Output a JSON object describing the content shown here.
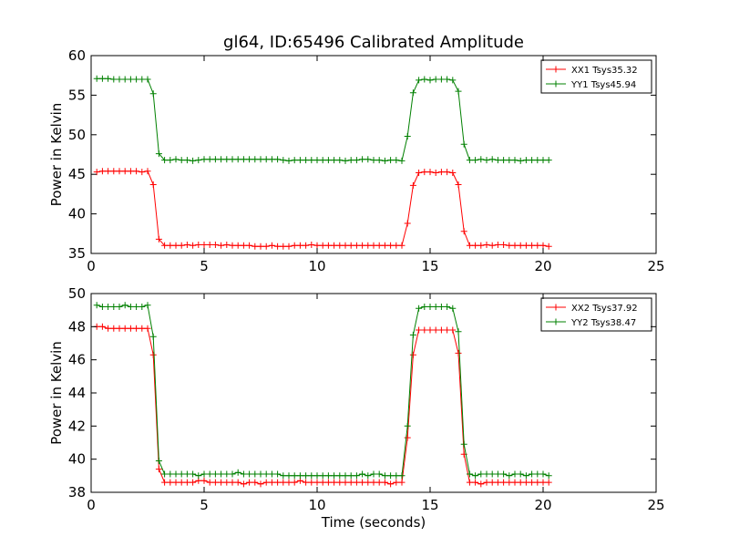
{
  "figure": {
    "title": "gl64, ID:65496 Calibrated Amplitude"
  },
  "chart_data": [
    {
      "type": "line",
      "title": "gl64, ID:65496 Calibrated Amplitude",
      "xlabel": "",
      "ylabel": "Power in Kelvin",
      "xlim": [
        0,
        25
      ],
      "ylim": [
        35,
        60
      ],
      "xticks": [
        0,
        5,
        10,
        15,
        20,
        25
      ],
      "yticks": [
        35,
        40,
        45,
        50,
        55,
        60
      ],
      "legend_position": "top-right",
      "grid": false,
      "x": [
        0.25,
        0.5,
        0.75,
        1.0,
        1.25,
        1.5,
        1.75,
        2.0,
        2.25,
        2.5,
        2.75,
        3.0,
        3.25,
        3.5,
        3.75,
        4.0,
        4.25,
        4.5,
        4.75,
        5.0,
        5.25,
        5.5,
        5.75,
        6.0,
        6.25,
        6.5,
        6.75,
        7.0,
        7.25,
        7.5,
        7.75,
        8.0,
        8.25,
        8.5,
        8.75,
        9.0,
        9.25,
        9.5,
        9.75,
        10.0,
        10.25,
        10.5,
        10.75,
        11.0,
        11.25,
        11.5,
        11.75,
        12.0,
        12.25,
        12.5,
        12.75,
        13.0,
        13.25,
        13.5,
        13.75,
        14.0,
        14.25,
        14.5,
        14.75,
        15.0,
        15.25,
        15.5,
        15.75,
        16.0,
        16.25,
        16.5,
        16.75,
        17.0,
        17.25,
        17.5,
        17.75,
        18.0,
        18.25,
        18.5,
        18.75,
        19.0,
        19.25,
        19.5,
        19.75,
        20.0,
        20.25
      ],
      "series": [
        {
          "name": "XX1 Tsys35.32",
          "color": "#ff0000",
          "values": [
            45.3,
            45.4,
            45.4,
            45.4,
            45.4,
            45.4,
            45.4,
            45.4,
            45.3,
            45.4,
            43.7,
            36.8,
            36.0,
            36.0,
            36.0,
            36.0,
            36.1,
            36.0,
            36.1,
            36.1,
            36.1,
            36.1,
            36.0,
            36.1,
            36.0,
            36.0,
            36.0,
            36.0,
            35.9,
            35.9,
            35.9,
            36.0,
            35.9,
            35.9,
            35.9,
            36.0,
            36.0,
            36.0,
            36.1,
            36.0,
            36.0,
            36.0,
            36.0,
            36.0,
            36.0,
            36.0,
            36.0,
            36.0,
            36.0,
            36.0,
            36.0,
            36.0,
            36.0,
            36.0,
            36.0,
            38.8,
            43.6,
            45.2,
            45.3,
            45.3,
            45.2,
            45.3,
            45.3,
            45.2,
            43.7,
            37.8,
            36.0,
            36.0,
            36.0,
            36.1,
            36.0,
            36.1,
            36.1,
            36.0,
            36.0,
            36.0,
            36.0,
            36.0,
            36.0,
            36.0,
            35.9
          ]
        },
        {
          "name": "YY1 Tsys45.94",
          "color": "#008000",
          "values": [
            57.1,
            57.1,
            57.1,
            57.0,
            57.0,
            57.0,
            57.0,
            57.0,
            57.0,
            57.0,
            55.2,
            47.6,
            46.8,
            46.8,
            46.9,
            46.8,
            46.8,
            46.7,
            46.8,
            46.9,
            46.9,
            46.9,
            46.9,
            46.9,
            46.9,
            46.9,
            46.9,
            46.9,
            46.9,
            46.9,
            46.9,
            46.9,
            46.9,
            46.8,
            46.7,
            46.8,
            46.8,
            46.8,
            46.8,
            46.8,
            46.8,
            46.8,
            46.8,
            46.8,
            46.7,
            46.8,
            46.8,
            46.9,
            46.9,
            46.8,
            46.8,
            46.7,
            46.8,
            46.8,
            46.7,
            49.8,
            55.3,
            56.9,
            57.0,
            56.9,
            57.0,
            57.0,
            57.0,
            56.9,
            55.5,
            48.8,
            46.8,
            46.8,
            46.9,
            46.8,
            46.9,
            46.8,
            46.8,
            46.8,
            46.8,
            46.7,
            46.8,
            46.8,
            46.8,
            46.8,
            46.8
          ]
        }
      ]
    },
    {
      "type": "line",
      "title": "",
      "xlabel": "Time (seconds)",
      "ylabel": "Power in Kelvin",
      "xlim": [
        0,
        25
      ],
      "ylim": [
        38,
        50
      ],
      "xticks": [
        0,
        5,
        10,
        15,
        20,
        25
      ],
      "yticks": [
        38,
        40,
        42,
        44,
        46,
        48,
        50
      ],
      "legend_position": "top-right",
      "grid": false,
      "x": [
        0.25,
        0.5,
        0.75,
        1.0,
        1.25,
        1.5,
        1.75,
        2.0,
        2.25,
        2.5,
        2.75,
        3.0,
        3.25,
        3.5,
        3.75,
        4.0,
        4.25,
        4.5,
        4.75,
        5.0,
        5.25,
        5.5,
        5.75,
        6.0,
        6.25,
        6.5,
        6.75,
        7.0,
        7.25,
        7.5,
        7.75,
        8.0,
        8.25,
        8.5,
        8.75,
        9.0,
        9.25,
        9.5,
        9.75,
        10.0,
        10.25,
        10.5,
        10.75,
        11.0,
        11.25,
        11.5,
        11.75,
        12.0,
        12.25,
        12.5,
        12.75,
        13.0,
        13.25,
        13.5,
        13.75,
        14.0,
        14.25,
        14.5,
        14.75,
        15.0,
        15.25,
        15.5,
        15.75,
        16.0,
        16.25,
        16.5,
        16.75,
        17.0,
        17.25,
        17.5,
        17.75,
        18.0,
        18.25,
        18.5,
        18.75,
        19.0,
        19.25,
        19.5,
        19.75,
        20.0,
        20.25
      ],
      "series": [
        {
          "name": "XX2 Tsys37.92",
          "color": "#ff0000",
          "values": [
            48.0,
            48.0,
            47.9,
            47.9,
            47.9,
            47.9,
            47.9,
            47.9,
            47.9,
            47.9,
            46.3,
            39.4,
            38.6,
            38.6,
            38.6,
            38.6,
            38.6,
            38.6,
            38.7,
            38.7,
            38.6,
            38.6,
            38.6,
            38.6,
            38.6,
            38.6,
            38.5,
            38.6,
            38.6,
            38.5,
            38.6,
            38.6,
            38.6,
            38.6,
            38.6,
            38.6,
            38.7,
            38.6,
            38.6,
            38.6,
            38.6,
            38.6,
            38.6,
            38.6,
            38.6,
            38.6,
            38.6,
            38.6,
            38.6,
            38.6,
            38.6,
            38.6,
            38.5,
            38.6,
            38.6,
            41.3,
            46.3,
            47.8,
            47.8,
            47.8,
            47.8,
            47.8,
            47.8,
            47.8,
            46.4,
            40.3,
            38.6,
            38.6,
            38.5,
            38.6,
            38.6,
            38.6,
            38.6,
            38.6,
            38.6,
            38.6,
            38.6,
            38.6,
            38.6,
            38.6,
            38.6
          ]
        },
        {
          "name": "YY2 Tsys38.47",
          "color": "#008000",
          "values": [
            49.3,
            49.2,
            49.2,
            49.2,
            49.2,
            49.3,
            49.2,
            49.2,
            49.2,
            49.3,
            47.4,
            39.9,
            39.1,
            39.1,
            39.1,
            39.1,
            39.1,
            39.1,
            39.0,
            39.1,
            39.1,
            39.1,
            39.1,
            39.1,
            39.1,
            39.2,
            39.1,
            39.1,
            39.1,
            39.1,
            39.1,
            39.1,
            39.1,
            39.0,
            39.0,
            39.0,
            39.0,
            39.0,
            39.0,
            39.0,
            39.0,
            39.0,
            39.0,
            39.0,
            39.0,
            39.0,
            39.0,
            39.1,
            39.0,
            39.1,
            39.1,
            39.0,
            39.0,
            39.0,
            39.0,
            42.0,
            47.5,
            49.1,
            49.2,
            49.2,
            49.2,
            49.2,
            49.2,
            49.1,
            47.7,
            40.9,
            39.1,
            39.0,
            39.1,
            39.1,
            39.1,
            39.1,
            39.1,
            39.0,
            39.1,
            39.1,
            39.0,
            39.1,
            39.1,
            39.1,
            39.0
          ]
        }
      ]
    }
  ]
}
